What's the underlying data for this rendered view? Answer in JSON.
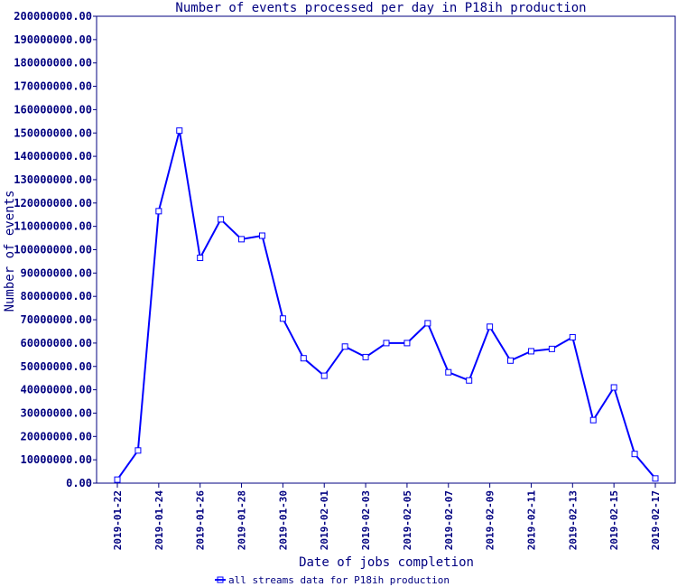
{
  "chart_data": {
    "type": "line",
    "title": "Number of events processed per day in P18ih production",
    "xlabel": "Date of jobs completion",
    "ylabel": "Number of events",
    "ylim": [
      0,
      200000000
    ],
    "y_ticks": [
      "0.00",
      "10000000.00",
      "20000000.00",
      "30000000.00",
      "40000000.00",
      "50000000.00",
      "60000000.00",
      "70000000.00",
      "80000000.00",
      "90000000.00",
      "100000000.00",
      "110000000.00",
      "120000000.00",
      "130000000.00",
      "140000000.00",
      "150000000.00",
      "160000000.00",
      "170000000.00",
      "180000000.00",
      "190000000.00",
      "200000000.00"
    ],
    "x_tick_labels": [
      "2019-01-22",
      "2019-01-24",
      "2019-01-26",
      "2019-01-28",
      "2019-01-30",
      "2019-02-01",
      "2019-02-03",
      "2019-02-05",
      "2019-02-07",
      "2019-02-09",
      "2019-02-11",
      "2019-02-13",
      "2019-02-15",
      "2019-02-17"
    ],
    "x": [
      "2019-01-22",
      "2019-01-23",
      "2019-01-24",
      "2019-01-25",
      "2019-01-26",
      "2019-01-27",
      "2019-01-28",
      "2019-01-29",
      "2019-01-30",
      "2019-01-31",
      "2019-02-01",
      "2019-02-02",
      "2019-02-03",
      "2019-02-04",
      "2019-02-05",
      "2019-02-06",
      "2019-02-07",
      "2019-02-08",
      "2019-02-09",
      "2019-02-10",
      "2019-02-11",
      "2019-02-12",
      "2019-02-13",
      "2019-02-14",
      "2019-02-15",
      "2019-02-16",
      "2019-02-17"
    ],
    "series": [
      {
        "name": "all streams data for P18ih production",
        "color": "#0000ff",
        "values": [
          1500000,
          14000000,
          116500000,
          151000000,
          96500000,
          113000000,
          104500000,
          106000000,
          70500000,
          53500000,
          46000000,
          58500000,
          54000000,
          60000000,
          60000000,
          68500000,
          47500000,
          44000000,
          67000000,
          52500000,
          56500000,
          57500000,
          62500000,
          27000000,
          41000000,
          12500000,
          2000000
        ]
      }
    ],
    "grid": false,
    "legend_position": "bottom-center",
    "axis_color": "#000080"
  }
}
